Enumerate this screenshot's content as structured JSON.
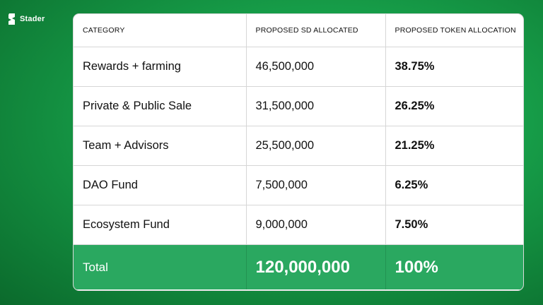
{
  "brand": {
    "name": "Stader"
  },
  "table": {
    "headers": [
      "CATEGORY",
      "PROPOSED SD ALLOCATED",
      "PROPOSED TOKEN ALLOCATION"
    ],
    "rows": [
      {
        "category": "Rewards + farming",
        "sd": "46,500,000",
        "pct": "38.75%"
      },
      {
        "category": "Private & Public Sale",
        "sd": "31,500,000",
        "pct": "26.25%"
      },
      {
        "category": "Team + Advisors",
        "sd": "25,500,000",
        "pct": "21.25%"
      },
      {
        "category": "DAO Fund",
        "sd": "7,500,000",
        "pct": "6.25%"
      },
      {
        "category": "Ecosystem Fund",
        "sd": "9,000,000",
        "pct": "7.50%"
      }
    ],
    "total": {
      "label": "Total",
      "sd": "120,000,000",
      "pct": "100%"
    }
  },
  "colors": {
    "background": "#17a04a",
    "total_row": "#2aa860",
    "text": "#111111"
  }
}
